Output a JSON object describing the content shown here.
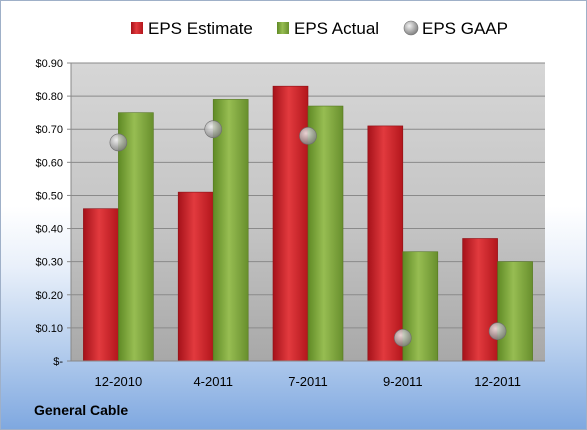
{
  "chart_data": {
    "type": "bar",
    "categories": [
      "12-2010",
      "4-2011",
      "7-2011",
      "9-2011",
      "12-2011"
    ],
    "series": [
      {
        "name": "EPS Estimate",
        "kind": "bar",
        "color": "#cc1f23",
        "values": [
          0.46,
          0.51,
          0.83,
          0.71,
          0.37
        ]
      },
      {
        "name": "EPS Actual",
        "kind": "bar",
        "color": "#7fa33b",
        "values": [
          0.75,
          0.79,
          0.77,
          0.33,
          0.3
        ]
      },
      {
        "name": "EPS GAAP",
        "kind": "marker",
        "color": "#9a9a9a",
        "values": [
          0.66,
          0.7,
          0.68,
          0.07,
          0.09
        ]
      }
    ],
    "ylim": [
      0,
      0.9
    ],
    "yticks": [
      {
        "value": 0.0,
        "label": "$-"
      },
      {
        "value": 0.1,
        "label": "$0.10"
      },
      {
        "value": 0.2,
        "label": "$0.20"
      },
      {
        "value": 0.3,
        "label": "$0.30"
      },
      {
        "value": 0.4,
        "label": "$0.40"
      },
      {
        "value": 0.5,
        "label": "$0.50"
      },
      {
        "value": 0.6,
        "label": "$0.60"
      },
      {
        "value": 0.7,
        "label": "$0.70"
      },
      {
        "value": 0.8,
        "label": "$0.80"
      },
      {
        "value": 0.9,
        "label": "$0.90"
      }
    ],
    "grid": true,
    "legend_position": "top"
  },
  "company": "General Cable"
}
